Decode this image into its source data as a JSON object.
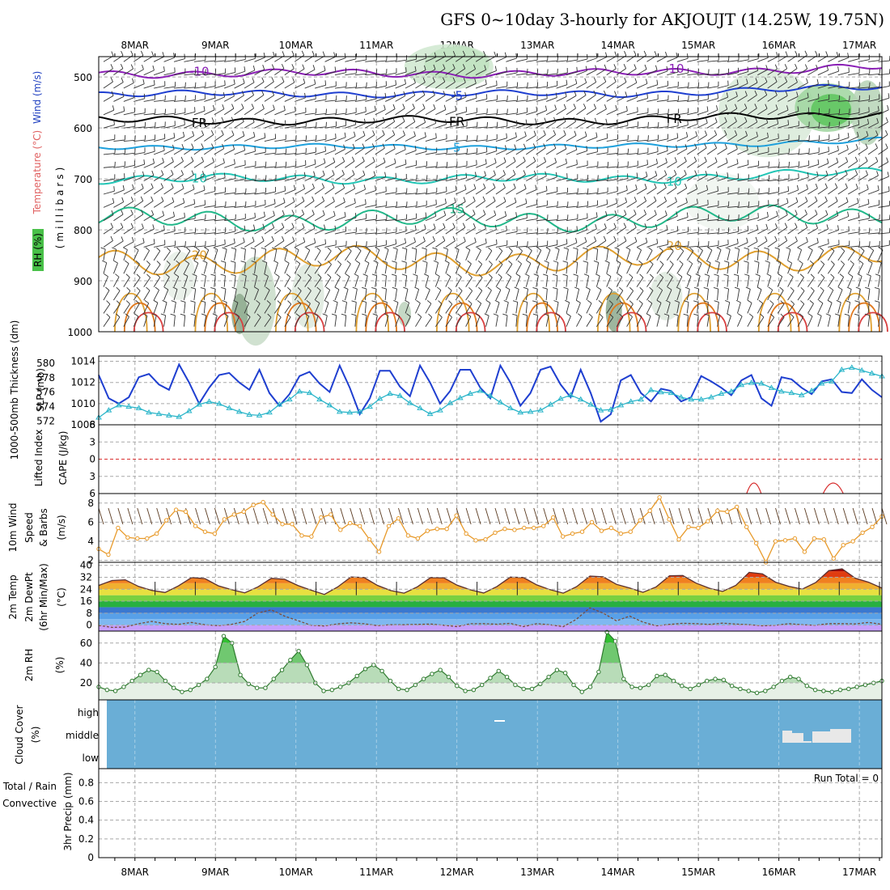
{
  "chart_data": {
    "type": "meteogram",
    "title": "GFS 0~10day 3-hourly for AKJOUJT (14.25W, 19.75N)",
    "dates": [
      "8MAR",
      "9MAR",
      "10MAR",
      "11MAR",
      "12MAR",
      "13MAR",
      "14MAR",
      "15MAR",
      "16MAR",
      "17MAR"
    ],
    "day_start": 7.55,
    "day_end": 17.28,
    "colors": {
      "blue": "#1f3fd0",
      "cyan": "#2ab5c9",
      "orange": "#e89a2a",
      "green": "#2ea82e",
      "cloud": "#6aaed6",
      "red": "#d43030"
    },
    "upper_air": {
      "ylabel_wind": "Wind (m/s)",
      "ylabel_temp": "Temperature (°C)",
      "ylabel_rh": "RH (%)",
      "ylabel_pres": "(millibars)",
      "y_ticks": [
        "500",
        "600",
        "700",
        "800",
        "900",
        "1000"
      ],
      "ylim": [
        460,
        1000
      ],
      "isotherms": [
        {
          "temp": -10,
          "base": 493,
          "amp": 6,
          "color": "#8a1fb5",
          "label": "-10"
        },
        {
          "temp": -5,
          "base": 533,
          "amp": 5,
          "color": "#1f3fd0",
          "label": "-5"
        },
        {
          "temp": 0,
          "base": 585,
          "amp": 6,
          "color": "#000000",
          "label": "FR"
        },
        {
          "temp": 5,
          "base": 637,
          "amp": 4,
          "color": "#1ea0dc",
          "label": "5"
        },
        {
          "temp": 10,
          "base": 700,
          "amp": 7,
          "color": "#22c5b5",
          "label": "10"
        },
        {
          "temp": 15,
          "base": 780,
          "amp": 16,
          "color": "#22b88a",
          "label": "15"
        },
        {
          "temp": 20,
          "base": 860,
          "amp": 20,
          "color": "#e0a030",
          "label": "20"
        }
      ]
    },
    "thickness_slp": {
      "ylabel_thick": "1000-500mb Thickness (dm)",
      "ylabel_slp": "SLP (mb)",
      "thick_ticks": [
        "572",
        "574",
        "576",
        "578",
        "580"
      ],
      "slp_ticks": [
        "1008",
        "1010",
        "1012",
        "1014"
      ],
      "slp_range": [
        1008,
        1014.5
      ],
      "thick_range": [
        571.5,
        581
      ],
      "slp": [
        1012.7,
        1010.5,
        1010.0,
        1010.6,
        1012.5,
        1012.8,
        1011.8,
        1011.3,
        1013.7,
        1012.0,
        1010.0,
        1011.5,
        1012.7,
        1012.9,
        1012.0,
        1011.3,
        1013.2,
        1011.0,
        1009.8,
        1010.9,
        1012.6,
        1013.0,
        1011.9,
        1011.1,
        1013.6,
        1011.5,
        1009.0,
        1010.5,
        1013.1,
        1013.1,
        1011.6,
        1010.7,
        1013.6,
        1012.0,
        1010.0,
        1011.2,
        1013.2,
        1013.2,
        1011.5,
        1010.5,
        1013.6,
        1012.0,
        1009.8,
        1011.0,
        1013.2,
        1013.5,
        1011.8,
        1010.6,
        1013.2,
        1011.0,
        1008.3,
        1009.0,
        1012.2,
        1012.7,
        1011.0,
        1010.2,
        1011.4,
        1011.2,
        1010.2,
        1010.6,
        1012.6,
        1012.1,
        1011.5,
        1010.8,
        1012.2,
        1012.7,
        1010.5,
        1009.8,
        1012.5,
        1012.3,
        1011.5,
        1010.9,
        1012.1,
        1012.3,
        1011.1,
        1011.0,
        1012.3,
        1011.3,
        1010.6
      ],
      "thickness": [
        572.5,
        573.5,
        574.2,
        574.0,
        573.8,
        573.2,
        573.0,
        572.8,
        572.6,
        573.4,
        574.3,
        574.7,
        574.4,
        573.8,
        573.3,
        572.9,
        572.8,
        573.2,
        574.3,
        575.0,
        576.1,
        575.9,
        575.0,
        574.2,
        573.3,
        573.2,
        573.3,
        574.0,
        575.1,
        575.8,
        575.5,
        574.5,
        573.8,
        573.0,
        573.5,
        574.5,
        575.2,
        575.8,
        576.2,
        575.5,
        574.6,
        573.8,
        573.2,
        573.3,
        573.5,
        574.3,
        575.1,
        575.6,
        575.0,
        574.3,
        573.5,
        573.6,
        574.2,
        574.7,
        575.0,
        576.3,
        576.0,
        575.9,
        575.3,
        575.0,
        575.0,
        575.3,
        575.8,
        576.1,
        577.0,
        577.3,
        577.2,
        576.6,
        576.1,
        575.9,
        575.6,
        576.2,
        577.2,
        577.5,
        579.1,
        579.4,
        579.0,
        578.6,
        578.2
      ]
    },
    "stability": {
      "ylabel_li": "Lifted Index",
      "ylabel_cape": "CAPE (J/kg)",
      "y_ticks": [
        "6",
        "3",
        "0",
        "3",
        "6"
      ],
      "ylim": [
        -6,
        6
      ]
    },
    "wind10m": {
      "ylabel": "10m Wind",
      "ylabel_speed": "Speed",
      "ylabel_barbs": "& Barbs",
      "ylabel_unit": "(m/s)",
      "y_ticks": [
        "2",
        "4",
        "6",
        "8"
      ],
      "ylim": [
        1.8,
        9
      ],
      "speed": [
        3.2,
        2.6,
        5.4,
        4.4,
        4.3,
        4.3,
        4.8,
        6.2,
        7.3,
        7.1,
        5.6,
        5.0,
        4.8,
        6.3,
        6.8,
        7.1,
        7.8,
        8.1,
        6.8,
        5.8,
        5.8,
        4.6,
        4.5,
        6.5,
        6.8,
        5.2,
        5.9,
        5.6,
        4.2,
        2.9,
        5.6,
        6.4,
        4.6,
        4.3,
        5.1,
        5.3,
        5.3,
        6.7,
        4.8,
        4.1,
        4.2,
        4.9,
        5.3,
        5.2,
        5.4,
        5.4,
        5.6,
        6.5,
        4.5,
        4.8,
        5.0,
        6.0,
        5.1,
        5.4,
        4.8,
        5.0,
        6.2,
        7.2,
        8.6,
        6.3,
        4.2,
        5.5,
        5.4,
        6.1,
        7.2,
        7.1,
        7.6,
        5.5,
        3.8,
        1.8,
        4.0,
        4.1,
        4.3,
        2.9,
        4.3,
        4.2,
        2.2,
        3.6,
        4.0,
        4.9,
        5.5,
        6.6
      ]
    },
    "temp2m": {
      "ylabel_temp": "2m Temp",
      "ylabel_dew": "2m DewPt",
      "ylabel_minmax": "(6hr Min/Max)",
      "ylabel_unit": "(°C)",
      "y_ticks": [
        "0",
        "8",
        "16",
        "24",
        "32",
        "40"
      ],
      "ylim": [
        -4,
        42
      ],
      "temp": [
        26.5,
        29.8,
        30.3,
        25.9,
        23.2,
        21.8,
        26.2,
        31.8,
        31.1,
        26.3,
        23.7,
        21.6,
        25.6,
        31.3,
        30.7,
        26.5,
        23.4,
        20.5,
        25.5,
        32.2,
        31.8,
        26.6,
        23.1,
        21.4,
        25.6,
        31.8,
        31.6,
        26.7,
        23.6,
        21.5,
        25.8,
        32.1,
        31.8,
        26.9,
        23.7,
        21.4,
        25.7,
        32.8,
        32.3,
        27.3,
        24.8,
        21.9,
        25.6,
        33.0,
        33.2,
        28.1,
        24.7,
        22.5,
        26.6,
        35.3,
        34.3,
        28.7,
        25.9,
        24.1,
        28.4,
        36.4,
        37.6,
        31.4,
        28.7,
        24.8
      ],
      "dewpt": [
        -0.2,
        -1.5,
        -1.3,
        0.9,
        2.5,
        1.0,
        0.5,
        1.8,
        0.2,
        -0.4,
        0.5,
        2.5,
        8.2,
        10.2,
        6.0,
        3.0,
        -0.1,
        -0.6,
        0.8,
        1.5,
        0.9,
        -0.4,
        0.3,
        0.3,
        0.5,
        0.7,
        -0.1,
        -1.0,
        0.9,
        1.0,
        0.6,
        1.2,
        -1.0,
        1.0,
        0.2,
        -1.1,
        4.0,
        11.6,
        8.0,
        2.9,
        6.0,
        2.0,
        -0.5,
        0.5,
        1.2,
        1.0,
        0.5,
        1.3,
        0.7,
        0.3,
        -0.5,
        -0.1,
        1.0,
        0.2,
        -0.1,
        1.0,
        1.0,
        0.8,
        1.8,
        0.5
      ]
    },
    "rh2m": {
      "ylabel": "2m RH",
      "ylabel_unit": "(%)",
      "y_ticks": [
        "20",
        "40",
        "60"
      ],
      "ylim": [
        3,
        72
      ],
      "rh": [
        16,
        13,
        12,
        16,
        22,
        28,
        33,
        31,
        22,
        15,
        11,
        13,
        18,
        24,
        36,
        67,
        60,
        28,
        19,
        15,
        15,
        24,
        33,
        43,
        52,
        38,
        20,
        12,
        13,
        16,
        20,
        27,
        34,
        38,
        32,
        22,
        14,
        13,
        18,
        24,
        29,
        33,
        26,
        17,
        12,
        13,
        18,
        25,
        32,
        26,
        18,
        14,
        14,
        19,
        26,
        33,
        30,
        18,
        11,
        16,
        31,
        71,
        62,
        24,
        16,
        15,
        18,
        27,
        28,
        22,
        17,
        14,
        18,
        22,
        24,
        23,
        17,
        14,
        12,
        10,
        12,
        16,
        22,
        26,
        24,
        17,
        13,
        12,
        11,
        13,
        14,
        16,
        18,
        20,
        22
      ]
    },
    "cloud": {
      "ylabel": "Cloud Cover",
      "ylabel_unit": "(%)",
      "levels": [
        "high",
        "middle",
        "low"
      ]
    },
    "precip": {
      "ylabel_a": "Total / Rain",
      "ylabel_b": "Convective",
      "ylabel": "3hr Precip (mm)",
      "run_total": "Run Total = 0",
      "y_ticks": [
        "0",
        "0.2",
        "0.4",
        "0.6",
        "0.8"
      ],
      "ylim": [
        0,
        0.95
      ]
    }
  }
}
